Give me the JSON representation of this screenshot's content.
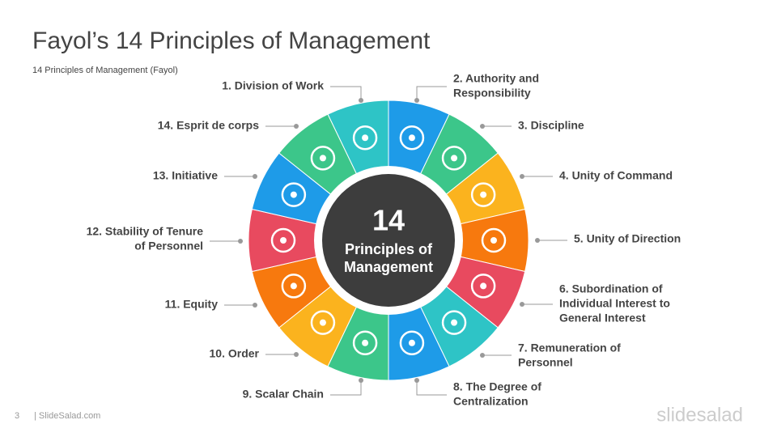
{
  "header": {
    "title": "Fayol’s 14 Principles of Management",
    "subtitle": "14 Principles  of Management  (Fayol)"
  },
  "center": {
    "number": "14",
    "lines": [
      "Principles of",
      "Management"
    ]
  },
  "segments": [
    {
      "color": "#2ec4c6",
      "lines": [
        "1. Division of Work"
      ]
    },
    {
      "color": "#1e9be8",
      "lines": [
        "2. Authority and",
        "Responsibility"
      ]
    },
    {
      "color": "#3cc68a",
      "lines": [
        "3. Discipline"
      ]
    },
    {
      "color": "#fbb31e",
      "lines": [
        "4. Unity of Command"
      ]
    },
    {
      "color": "#f7790e",
      "lines": [
        "5. Unity of Direction"
      ]
    },
    {
      "color": "#e84a5f",
      "lines": [
        "6. Subordination  of",
        "Individual  Interest to",
        "General Interest"
      ]
    },
    {
      "color": "#2ec4c6",
      "lines": [
        "7. Remuneration of",
        "Personnel"
      ]
    },
    {
      "color": "#1e9be8",
      "lines": [
        "8. The Degree of",
        "Centralization"
      ]
    },
    {
      "color": "#3cc68a",
      "lines": [
        "9. Scalar Chain"
      ]
    },
    {
      "color": "#fbb31e",
      "lines": [
        "10. Order"
      ]
    },
    {
      "color": "#f7790e",
      "lines": [
        "11. Equity"
      ]
    },
    {
      "color": "#e84a5f",
      "lines": [
        "12. Stability of Tenure",
        "of Personnel"
      ]
    },
    {
      "color": "#1e9be8",
      "lines": [
        "13. Initiative"
      ]
    },
    {
      "color": "#3cc68a",
      "lines": [
        "14. Esprit de corps"
      ]
    }
  ],
  "footer": {
    "page": "3",
    "site": "| SlideSalad.com",
    "logo": "slidesalad"
  }
}
